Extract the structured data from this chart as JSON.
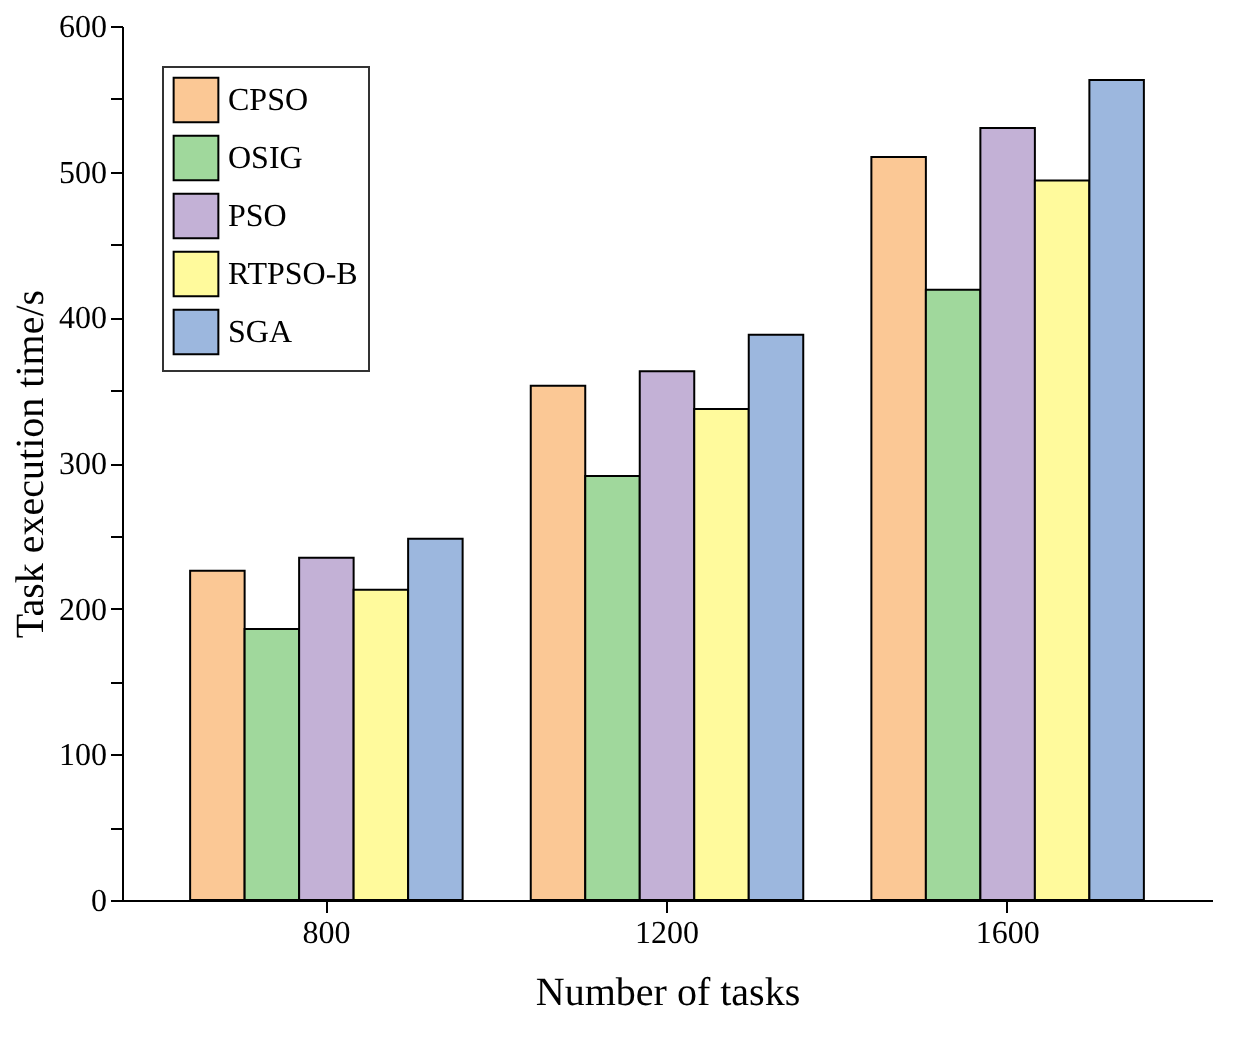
{
  "chart_data": {
    "type": "bar",
    "xlabel": "Number of tasks",
    "ylabel": "Task execution time/s",
    "categories": [
      "800",
      "1200",
      "1600"
    ],
    "series": [
      {
        "name": "CPSO",
        "color": "#fbc895",
        "values": [
          226,
          353,
          510
        ]
      },
      {
        "name": "OSIG",
        "color": "#a0d89c",
        "values": [
          186,
          291,
          419
        ]
      },
      {
        "name": "PSO",
        "color": "#c3b1d6",
        "values": [
          235,
          363,
          530
        ]
      },
      {
        "name": "RTPSO-B",
        "color": "#fffa9c",
        "values": [
          213,
          337,
          494
        ]
      },
      {
        "name": "SGA",
        "color": "#9cb7de",
        "values": [
          248,
          388,
          563
        ]
      }
    ],
    "ylim": [
      0,
      600
    ],
    "yticks": [
      0,
      {
        "value": 50,
        "label": null
      },
      100,
      {
        "value": 150,
        "label": null
      },
      200,
      {
        "value": 250,
        "label": null
      },
      300,
      {
        "value": 350,
        "label": null
      },
      400,
      {
        "value": 450,
        "label": null
      },
      500,
      {
        "value": 550,
        "label": null
      },
      600
    ],
    "grid": false,
    "legend": "top left"
  }
}
